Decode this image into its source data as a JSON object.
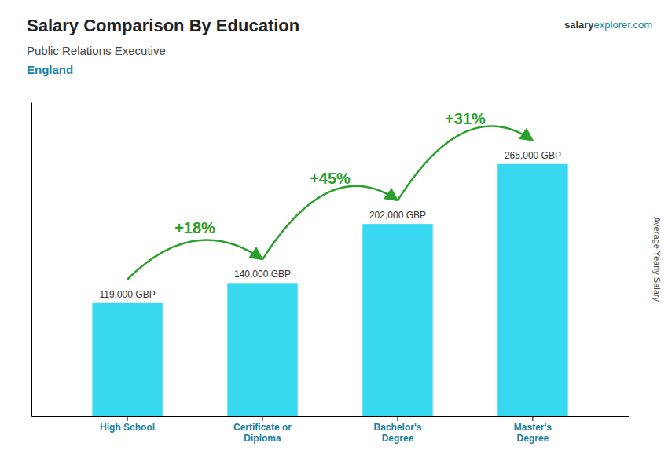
{
  "chart_data": {
    "type": "bar",
    "title": "Salary Comparison By Education",
    "subtitle": [
      "Public Relations Executive",
      "England"
    ],
    "categories": [
      "High School",
      "Certificate or\nDiploma",
      "Bachelor's\nDegree",
      "Master's\nDegree"
    ],
    "values": [
      119000,
      140000,
      202000,
      265000
    ],
    "value_labels": [
      "119,000 GBP",
      "140,000 GBP",
      "202,000 GBP",
      "265,000 GBP"
    ],
    "data_labels": true,
    "color": "#38d8f0",
    "ylabel": "Average Yearly Salary",
    "ylim": [
      0,
      330000
    ],
    "annotations": [
      "+18%",
      "+45%",
      "+31%"
    ],
    "source": [
      "salary",
      "explorer.com"
    ],
    "grid": false,
    "tick_labels": "x"
  }
}
